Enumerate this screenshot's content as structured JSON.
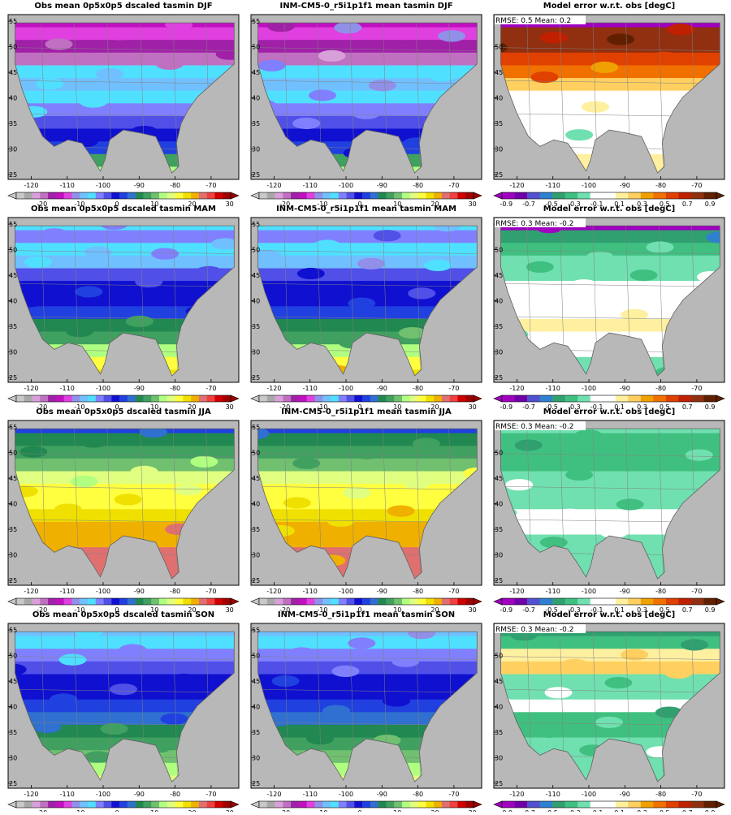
{
  "rows": [
    {
      "season": "DJF",
      "panels": [
        {
          "kind": "abs",
          "title": "Obs mean 0p5x0p5 dscaled tasmin DJF"
        },
        {
          "kind": "abs",
          "title": "INM-CM5-0_r5i1p1f1 mean tasmin DJF"
        },
        {
          "kind": "err",
          "title": "Model error w.r.t. obs [degC]",
          "stats": "RMSE: 0.5  Mean: 0.2"
        }
      ]
    },
    {
      "season": "MAM",
      "panels": [
        {
          "kind": "abs",
          "title": "Obs mean 0p5x0p5 dscaled tasmin MAM"
        },
        {
          "kind": "abs",
          "title": "INM-CM5-0_r5i1p1f1 mean tasmin MAM"
        },
        {
          "kind": "err",
          "title": "Model error w.r.t. obs [degC]",
          "stats": "RMSE: 0.3  Mean: -0.2"
        }
      ]
    },
    {
      "season": "JJA",
      "panels": [
        {
          "kind": "abs",
          "title": "Obs mean 0p5x0p5 dscaled tasmin JJA"
        },
        {
          "kind": "abs",
          "title": "INM-CM5-0_r5i1p1f1 mean tasmin JJA"
        },
        {
          "kind": "err",
          "title": "Model error w.r.t. obs [degC]",
          "stats": "RMSE: 0.3  Mean: -0.2"
        }
      ]
    },
    {
      "season": "SON",
      "panels": [
        {
          "kind": "abs",
          "title": "Obs mean 0p5x0p5 dscaled tasmin SON"
        },
        {
          "kind": "abs",
          "title": "INM-CM5-0_r5i1p1f1 mean tasmin SON"
        },
        {
          "kind": "err",
          "title": "Model error w.r.t. obs [degC]",
          "stats": "RMSE: 0.3  Mean: -0.2"
        }
      ]
    }
  ],
  "axes": {
    "lon_ticks": [
      "-120",
      "-110",
      "-100",
      "-90",
      "-80",
      "-70"
    ],
    "lat_ticks": [
      "55",
      "50",
      "45",
      "40",
      "35",
      "30",
      "25"
    ]
  },
  "colorbar_abs": {
    "labels": [
      "-20",
      "-10",
      "0",
      "10",
      "20",
      "30"
    ],
    "colors": [
      "#c8c8c8",
      "#a8a8a8",
      "#d8a0d8",
      "#c070c0",
      "#a020a8",
      "#c010c0",
      "#e040e0",
      "#9090e8",
      "#70c0ff",
      "#50e0ff",
      "#8080ff",
      "#5050e8",
      "#1010d0",
      "#2040e0",
      "#3070d0",
      "#208850",
      "#40a060",
      "#70c070",
      "#b0ff80",
      "#e0ff80",
      "#ffff40",
      "#f0e000",
      "#f0b000",
      "#e07070",
      "#f04040",
      "#d00000",
      "#a00000"
    ]
  },
  "colorbar_err": {
    "labels": [
      "-0.9",
      "-0.7",
      "-0.5",
      "-0.3",
      "-0.1",
      "0.1",
      "0.3",
      "0.5",
      "0.7",
      "0.9"
    ],
    "colors": [
      "#a000c0",
      "#7000a8",
      "#5050d0",
      "#3080d0",
      "#30a070",
      "#40c080",
      "#70e0b0",
      "#ffffff",
      "#ffffff",
      "#fff0a0",
      "#ffd060",
      "#f0a000",
      "#f07000",
      "#e04000",
      "#c02000",
      "#903010",
      "#602000"
    ]
  },
  "land_color": "#b8b8b8"
}
